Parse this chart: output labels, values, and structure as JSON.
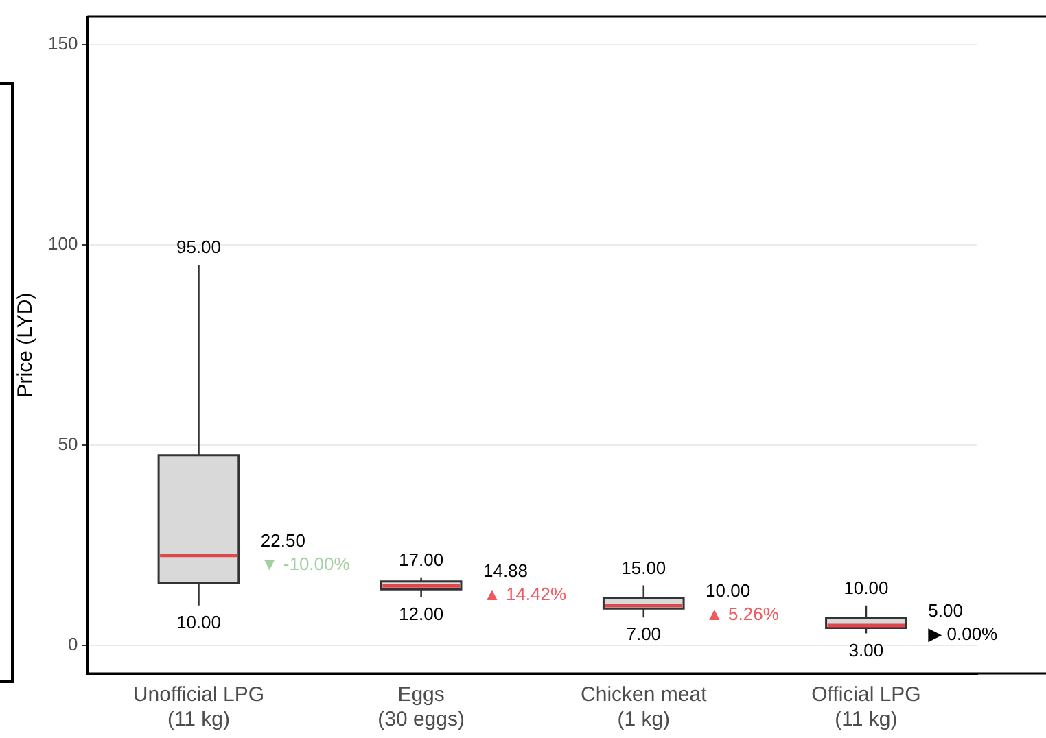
{
  "chart_data": {
    "type": "box",
    "ylabel": "Price (LYD)",
    "categories": [
      "Unofficial LPG\n(11 kg)",
      "Eggs\n(30 eggs)",
      "Chicken meat\n(1 kg)",
      "Official LPG\n(11 kg)"
    ],
    "boxes": [
      {
        "low": 10,
        "q1": 15.6,
        "median": 22.5,
        "q3": 47.5,
        "high": 95
      },
      {
        "low": 12,
        "q1": 14,
        "median": 14.88,
        "q3": 16,
        "high": 17
      },
      {
        "low": 7,
        "q1": 9.2,
        "median": 10,
        "q3": 11.9,
        "high": 15
      },
      {
        "low": 3,
        "q1": 4.4,
        "median": 5,
        "q3": 6.8,
        "high": 10
      }
    ],
    "color": "#d9d9d9",
    "ylim": [
      -7,
      157
    ],
    "yticks": [
      0,
      50,
      100,
      150
    ],
    "grid": "y",
    "legend": false,
    "annotations": [
      {
        "text": "95.00",
        "x": "Unofficial LPG\n(11 kg)",
        "y": 95
      },
      {
        "text": "10.00",
        "x": "Unofficial LPG\n(11 kg)",
        "y": 10
      },
      "22.50",
      "▼ -10.00%",
      {
        "text": "17.00",
        "x": "Eggs\n(30 eggs)",
        "y": 17
      },
      {
        "text": "12.00",
        "x": "Eggs\n(30 eggs)",
        "y": 12
      },
      "14.88",
      "▲ 14.42%",
      {
        "text": "15.00",
        "x": "Chicken meat\n(1 kg)",
        "y": 15
      },
      {
        "text": "7.00",
        "x": "Chicken meat\n(1 kg)",
        "y": 7
      },
      "10.00",
      "▲ 5.26%",
      {
        "text": "10.00",
        "x": "Official LPG\n(11 kg)",
        "y": 10
      },
      {
        "text": "3.00",
        "x": "Official LPG\n(11 kg)",
        "y": 3
      },
      "5.00",
      "▶ 0.00%"
    ]
  }
}
